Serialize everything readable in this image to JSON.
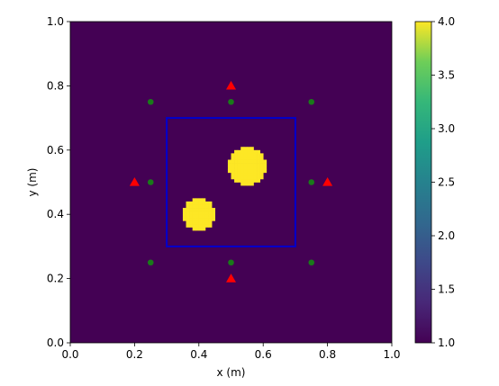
{
  "chart_data": {
    "type": "heatmap",
    "title": "",
    "xlabel": "x (m)",
    "ylabel": "y (m)",
    "xlim": [
      0.0,
      1.0
    ],
    "ylim": [
      0.0,
      1.0
    ],
    "x_ticks": [
      "0.0",
      "0.2",
      "0.4",
      "0.6",
      "0.8",
      "1.0"
    ],
    "y_ticks": [
      "0.0",
      "0.2",
      "0.4",
      "0.6",
      "0.8",
      "1.0"
    ],
    "grid": false,
    "background_value": 1.0,
    "inclusions": [
      {
        "cx": 0.4,
        "cy": 0.4,
        "r": 0.05,
        "value": 4.0
      },
      {
        "cx": 0.55,
        "cy": 0.55,
        "r": 0.06,
        "value": 4.0
      }
    ],
    "domain_box": {
      "x0": 0.3,
      "y0": 0.3,
      "x1": 0.7,
      "y1": 0.7,
      "color": "#0000cc"
    },
    "series": [
      {
        "marker": "circle",
        "color": "#1a7a1a",
        "points": [
          [
            0.25,
            0.75
          ],
          [
            0.5,
            0.75
          ],
          [
            0.75,
            0.75
          ],
          [
            0.25,
            0.5
          ],
          [
            0.75,
            0.5
          ],
          [
            0.25,
            0.25
          ],
          [
            0.5,
            0.25
          ],
          [
            0.75,
            0.25
          ]
        ]
      },
      {
        "marker": "triangle",
        "color": "#ff0000",
        "points": [
          [
            0.5,
            0.8
          ],
          [
            0.2,
            0.5
          ],
          [
            0.8,
            0.5
          ],
          [
            0.5,
            0.2
          ]
        ]
      }
    ],
    "colorbar": {
      "min": 1.0,
      "max": 4.0,
      "ticks": [
        "1.0",
        "1.5",
        "2.0",
        "2.5",
        "3.0",
        "3.5",
        "4.0"
      ],
      "colormap": "viridis"
    },
    "colors": {
      "low": "#440154",
      "high": "#fde725"
    }
  }
}
